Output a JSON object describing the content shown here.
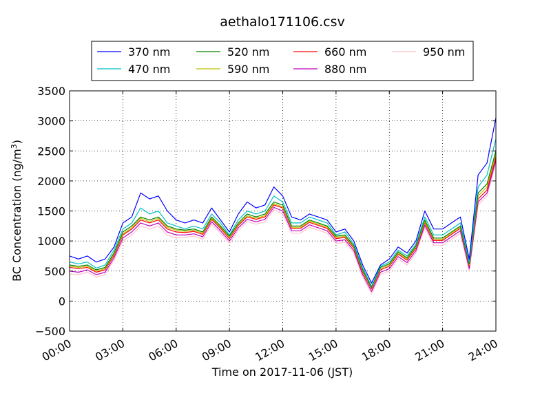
{
  "chart_data": {
    "type": "line",
    "title": "aethalo171106.csv",
    "xlabel": "Time on 2017-11-06 (JST)",
    "ylabel": "BC Concentration (ng/m³)",
    "ylabel_main": "BC Concentration (ng/m",
    "ylabel_sup": "3",
    "ylabel_close": ")",
    "xlim": [
      0,
      24
    ],
    "ylim": [
      -500,
      3500
    ],
    "grid": true,
    "legend_position": "top-center",
    "x_ticks": [
      0,
      3,
      6,
      9,
      12,
      15,
      18,
      21,
      24
    ],
    "x_tick_labels": [
      "00:00",
      "03:00",
      "06:00",
      "09:00",
      "12:00",
      "15:00",
      "18:00",
      "21:00",
      "24:00"
    ],
    "y_ticks": [
      -500,
      0,
      500,
      1000,
      1500,
      2000,
      2500,
      3000,
      3500
    ],
    "y_tick_labels": [
      "−500",
      "0",
      "500",
      "1000",
      "1500",
      "2000",
      "2500",
      "3000",
      "3500"
    ],
    "x": [
      0,
      0.5,
      1,
      1.5,
      2,
      2.5,
      3,
      3.5,
      4,
      4.5,
      5,
      5.5,
      6,
      6.5,
      7,
      7.5,
      8,
      8.5,
      9,
      9.5,
      10,
      10.5,
      11,
      11.5,
      12,
      12.5,
      13,
      13.5,
      14,
      14.5,
      15,
      15.5,
      16,
      16.5,
      17,
      17.5,
      18,
      18.5,
      19,
      19.5,
      20,
      20.5,
      21,
      21.5,
      22,
      22.5,
      23,
      23.5,
      24
    ],
    "series": [
      {
        "name": "370 nm",
        "color": "#0000ff",
        "values": [
          750,
          700,
          750,
          650,
          700,
          900,
          1300,
          1400,
          1800,
          1700,
          1750,
          1500,
          1350,
          1300,
          1350,
          1300,
          1550,
          1350,
          1150,
          1450,
          1650,
          1550,
          1600,
          1900,
          1750,
          1400,
          1350,
          1450,
          1400,
          1350,
          1150,
          1200,
          1000,
          600,
          300,
          600,
          700,
          900,
          800,
          1000,
          1500,
          1200,
          1200,
          1300,
          1400,
          700,
          2100,
          2300,
          3050
        ]
      },
      {
        "name": "470 nm",
        "color": "#00bfbf",
        "values": [
          650,
          620,
          650,
          550,
          600,
          850,
          1200,
          1300,
          1550,
          1450,
          1500,
          1300,
          1250,
          1200,
          1250,
          1200,
          1450,
          1300,
          1100,
          1350,
          1500,
          1450,
          1500,
          1750,
          1650,
          1300,
          1300,
          1400,
          1350,
          1300,
          1100,
          1150,
          950,
          550,
          250,
          580,
          650,
          850,
          750,
          950,
          1400,
          1100,
          1100,
          1200,
          1300,
          650,
          1900,
          2100,
          2700
        ]
      },
      {
        "name": "520 nm",
        "color": "#008000",
        "values": [
          600,
          580,
          600,
          520,
          560,
          800,
          1150,
          1250,
          1400,
          1350,
          1400,
          1250,
          1200,
          1180,
          1200,
          1150,
          1400,
          1250,
          1080,
          1300,
          1450,
          1400,
          1450,
          1650,
          1600,
          1250,
          1250,
          1350,
          1300,
          1250,
          1080,
          1100,
          920,
          520,
          230,
          560,
          620,
          820,
          720,
          920,
          1350,
          1050,
          1050,
          1150,
          1250,
          620,
          1800,
          1950,
          2500
        ]
      },
      {
        "name": "590 nm",
        "color": "#bfbf00",
        "values": [
          580,
          560,
          580,
          500,
          540,
          780,
          1120,
          1220,
          1380,
          1320,
          1380,
          1230,
          1180,
          1160,
          1180,
          1130,
          1380,
          1230,
          1060,
          1280,
          1420,
          1380,
          1420,
          1620,
          1570,
          1230,
          1230,
          1330,
          1280,
          1230,
          1060,
          1080,
          900,
          500,
          220,
          540,
          600,
          800,
          700,
          900,
          1320,
          1030,
          1030,
          1130,
          1230,
          600,
          1750,
          1900,
          2450
        ]
      },
      {
        "name": "660 nm",
        "color": "#ff0000",
        "values": [
          560,
          540,
          560,
          480,
          520,
          760,
          1100,
          1200,
          1350,
          1300,
          1350,
          1200,
          1150,
          1140,
          1160,
          1110,
          1360,
          1210,
          1040,
          1260,
          1400,
          1360,
          1400,
          1600,
          1550,
          1210,
          1210,
          1310,
          1260,
          1210,
          1040,
          1060,
          880,
          480,
          200,
          520,
          580,
          780,
          680,
          880,
          1300,
          1010,
          1010,
          1110,
          1210,
          580,
          1700,
          1850,
          2400
        ]
      },
      {
        "name": "880 nm",
        "color": "#bf00bf",
        "values": [
          500,
          480,
          520,
          440,
          480,
          720,
          1050,
          1150,
          1300,
          1250,
          1300,
          1150,
          1100,
          1100,
          1120,
          1070,
          1320,
          1170,
          1000,
          1220,
          1360,
          1320,
          1360,
          1560,
          1500,
          1170,
          1170,
          1270,
          1220,
          1170,
          1000,
          1020,
          840,
          440,
          160,
          480,
          540,
          740,
          640,
          840,
          1260,
          970,
          970,
          1070,
          1170,
          540,
          1650,
          1800,
          2350
        ]
      },
      {
        "name": "950 nm",
        "color": "#ffc0cb",
        "values": [
          450,
          440,
          480,
          400,
          440,
          680,
          1000,
          1100,
          1250,
          1200,
          1250,
          1100,
          1050,
          1060,
          1080,
          1030,
          1280,
          1130,
          960,
          1180,
          1320,
          1280,
          1320,
          1520,
          1450,
          1130,
          1130,
          1230,
          1180,
          1130,
          960,
          980,
          800,
          400,
          120,
          440,
          500,
          700,
          600,
          800,
          1220,
          930,
          930,
          1030,
          1130,
          500,
          1600,
          1750,
          2300
        ]
      }
    ]
  }
}
